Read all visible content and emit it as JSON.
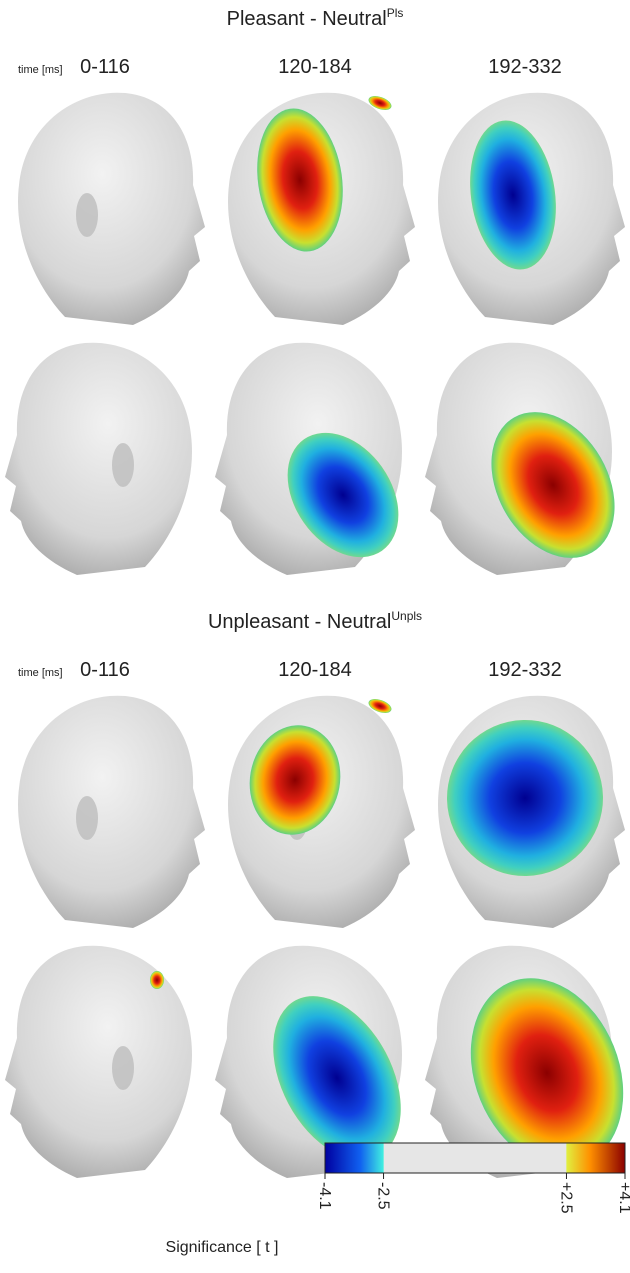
{
  "panels": [
    {
      "title": "Pleasant - Neutral",
      "title_sup": "Pls",
      "time_label": "time [ms]",
      "windows": [
        "0-116",
        "120-184",
        "192-332"
      ]
    },
    {
      "title": "Unpleasant - Neutral",
      "title_sup": "Unpls",
      "time_label": "time [ms]",
      "windows": [
        "0-116",
        "120-184",
        "192-332"
      ]
    }
  ],
  "colorbar": {
    "label": "Significance [ t ]",
    "ticks": [
      {
        "value": -4.1,
        "label": "-4.1"
      },
      {
        "value": -2.5,
        "label": "-2.5"
      },
      {
        "value": 2.5,
        "label": "+2.5"
      },
      {
        "value": 4.1,
        "label": "+4.1"
      }
    ]
  }
}
